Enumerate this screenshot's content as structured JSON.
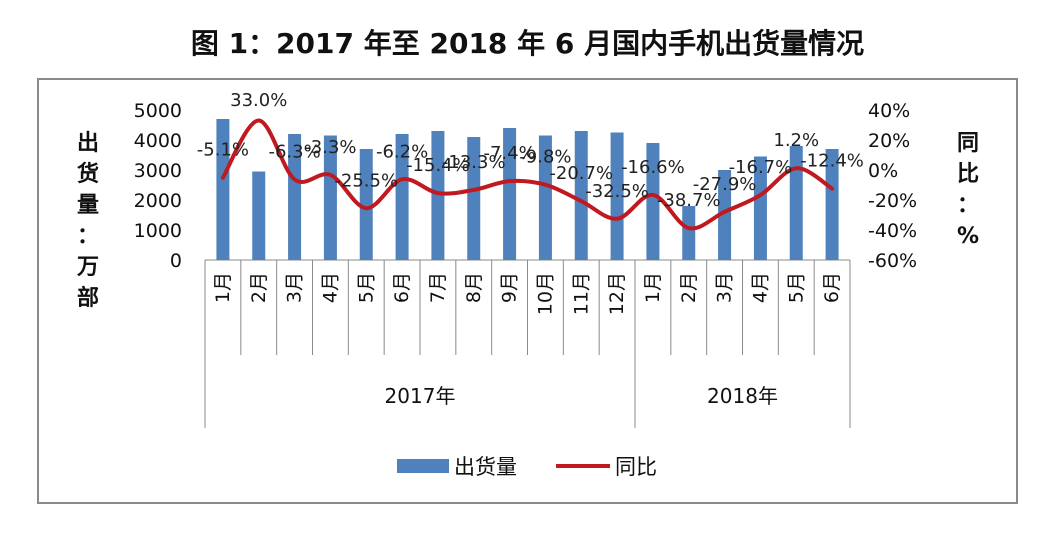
{
  "title": "图 1：2017 年至 2018 年 6 月国内手机出货量情况",
  "chart_data": {
    "type": "bar",
    "title": "图 1：2017 年至 2018 年 6 月国内手机出货量情况",
    "categories": [
      "1月",
      "2月",
      "3月",
      "4月",
      "5月",
      "6月",
      "7月",
      "8月",
      "9月",
      "10月",
      "11月",
      "12月",
      "1月",
      "2月",
      "3月",
      "4月",
      "5月",
      "6月"
    ],
    "groups": [
      {
        "label": "2017年",
        "start": 0,
        "end": 11
      },
      {
        "label": "2018年",
        "start": 12,
        "end": 17
      }
    ],
    "ylabel": "出货量：万部",
    "y2label": "同比：%",
    "ylim": [
      0,
      5000
    ],
    "y2lim": [
      -60,
      40
    ],
    "yticks": [
      "0",
      "1000",
      "2000",
      "3000",
      "4000",
      "5000"
    ],
    "y2ticks": [
      "-60%",
      "-40%",
      "-20%",
      "0%",
      "20%",
      "40%"
    ],
    "series": [
      {
        "name": "出货量",
        "type": "bar",
        "color": "#4f81bd",
        "values": [
          4700,
          2950,
          4200,
          4150,
          3700,
          4200,
          4300,
          4100,
          4400,
          4150,
          4300,
          4250,
          3900,
          1800,
          3000,
          3450,
          3800,
          3700
        ]
      },
      {
        "name": "同比",
        "type": "line",
        "axis": "right",
        "color": "#c0191f",
        "values": [
          -5.1,
          33.0,
          -6.3,
          -3.3,
          -25.5,
          -6.2,
          -15.4,
          -13.3,
          -7.4,
          -9.8,
          -20.7,
          -32.5,
          -16.6,
          -38.7,
          -27.9,
          -16.7,
          1.2,
          -12.4
        ],
        "labels": [
          "-5.1%",
          "33.0%",
          "-6.3%",
          "-3.3%",
          "-25.5%",
          "-6.2%",
          "-15.4%",
          "-13.3%",
          "-7.4%",
          "-9.8%",
          "-20.7%",
          "-32.5%",
          "-16.6%",
          "-38.7%",
          "-27.9%",
          "-16.7%",
          "1.2%",
          "-12.4%"
        ]
      }
    ],
    "legend_position": "bottom",
    "grid": false
  }
}
